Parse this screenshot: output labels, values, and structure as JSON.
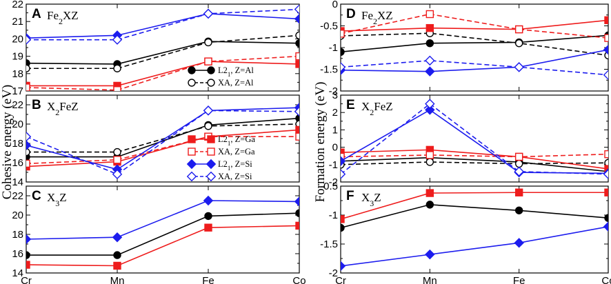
{
  "figure": {
    "ylabel_left": "Cohesive energy (eV)",
    "ylabel_right": "Formation energy (eV)"
  },
  "colors": {
    "black": "#000000",
    "red": "#ee1c1c",
    "blue": "#1c1cee"
  },
  "chart_data": [
    {
      "id": "A",
      "letter": "A",
      "title_base": "Fe",
      "title_sub": "2",
      "title_end": "XZ",
      "type": "line",
      "categories": [
        "Cr",
        "Mn",
        "Fe",
        "Co"
      ],
      "ylim": [
        17,
        22
      ],
      "yticks": [
        17,
        18,
        19,
        20,
        21,
        22
      ],
      "yticklabels": [
        "17",
        "18",
        "19",
        "20",
        "21",
        "22"
      ],
      "xticklabels": [],
      "series": [
        {
          "name": "L21, Z=Al",
          "color": "black",
          "style": "solid",
          "marker": "circle",
          "filled": true,
          "values": [
            18.6,
            18.55,
            19.85,
            19.75
          ]
        },
        {
          "name": "XA, Z=Al",
          "color": "black",
          "style": "dashed",
          "marker": "circle",
          "filled": false,
          "values": [
            18.3,
            18.3,
            19.8,
            20.2
          ]
        },
        {
          "name": "L21, Z=Ga",
          "color": "red",
          "style": "solid",
          "marker": "square",
          "filled": true,
          "values": [
            17.3,
            17.3,
            18.7,
            18.55
          ]
        },
        {
          "name": "XA, Z=Ga",
          "color": "red",
          "style": "dashed",
          "marker": "square",
          "filled": false,
          "values": [
            17.2,
            17.05,
            18.7,
            19.0
          ]
        },
        {
          "name": "L21, Z=Si",
          "color": "blue",
          "style": "solid",
          "marker": "diamond",
          "filled": true,
          "values": [
            20.05,
            20.2,
            21.45,
            21.15
          ]
        },
        {
          "name": "XA, Z=Si",
          "color": "blue",
          "style": "dashed",
          "marker": "diamond",
          "filled": false,
          "values": [
            19.95,
            19.95,
            21.45,
            21.7
          ]
        }
      ]
    },
    {
      "id": "B",
      "letter": "B",
      "title_base": "X",
      "title_sub": "2",
      "title_end": "FeZ",
      "type": "line",
      "categories": [
        "Cr",
        "Mn",
        "Fe",
        "Co"
      ],
      "ylim": [
        14,
        23
      ],
      "yticks": [
        14,
        16,
        18,
        20,
        22
      ],
      "yticklabels": [
        "14",
        "16",
        "18",
        "20",
        "22"
      ],
      "xticklabels": [],
      "series": [
        {
          "name": "L21, Z=Al",
          "color": "black",
          "style": "solid",
          "marker": "circle",
          "filled": true,
          "values": [
            16.6,
            16.6,
            19.9,
            20.6
          ]
        },
        {
          "name": "XA, Z=Al",
          "color": "black",
          "style": "dashed",
          "marker": "circle",
          "filled": false,
          "values": [
            17.1,
            17.1,
            19.8,
            20.0
          ]
        },
        {
          "name": "L21, Z=Ga",
          "color": "red",
          "style": "solid",
          "marker": "square",
          "filled": true,
          "values": [
            15.6,
            16.1,
            18.7,
            19.4
          ]
        },
        {
          "name": "XA, Z=Ga",
          "color": "red",
          "style": "dashed",
          "marker": "square",
          "filled": false,
          "values": [
            15.9,
            16.3,
            18.7,
            18.7
          ]
        },
        {
          "name": "L21, Z=Si",
          "color": "blue",
          "style": "solid",
          "marker": "diamond",
          "filled": true,
          "values": [
            17.8,
            15.3,
            21.4,
            21.7
          ]
        },
        {
          "name": "XA, Z=Si",
          "color": "blue",
          "style": "dashed",
          "marker": "diamond",
          "filled": false,
          "values": [
            18.7,
            14.8,
            21.4,
            21.3
          ]
        }
      ]
    },
    {
      "id": "C",
      "letter": "C",
      "title_base": "X",
      "title_sub": "3",
      "title_end": "Z",
      "type": "line",
      "categories": [
        "Cr",
        "Mn",
        "Fe",
        "Co"
      ],
      "ylim": [
        14,
        23
      ],
      "yticks": [
        14,
        16,
        18,
        20,
        22
      ],
      "yticklabels": [
        "14",
        "16",
        "18",
        "20",
        "22"
      ],
      "xticklabels": [
        "Cr",
        "Mn",
        "Fe",
        "Co"
      ],
      "series": [
        {
          "name": "Z=Al",
          "color": "black",
          "style": "solid",
          "marker": "circle",
          "filled": true,
          "values": [
            15.85,
            15.85,
            19.9,
            20.2
          ]
        },
        {
          "name": "Z=Ga",
          "color": "red",
          "style": "solid",
          "marker": "square",
          "filled": true,
          "values": [
            14.85,
            14.75,
            18.7,
            18.9
          ]
        },
        {
          "name": "Z=Si",
          "color": "blue",
          "style": "solid",
          "marker": "diamond",
          "filled": true,
          "values": [
            17.5,
            17.7,
            21.5,
            21.4
          ]
        }
      ]
    },
    {
      "id": "D",
      "letter": "D",
      "title_base": "Fe",
      "title_sub": "2",
      "title_end": "XZ",
      "type": "line",
      "categories": [
        "Cr",
        "Mn",
        "Fe",
        "Co"
      ],
      "ylim": [
        -2,
        0
      ],
      "yticks": [
        -2,
        -1.5,
        -1,
        -0.5,
        0
      ],
      "yticklabels": [
        "-2",
        "-1.5",
        "-1",
        "-0.5",
        "0"
      ],
      "xticklabels": [],
      "series": [
        {
          "name": "L21, Z=Al",
          "color": "black",
          "style": "solid",
          "marker": "circle",
          "filled": true,
          "values": [
            -1.1,
            -0.9,
            -0.88,
            -0.72
          ]
        },
        {
          "name": "XA, Z=Al",
          "color": "black",
          "style": "dashed",
          "marker": "circle",
          "filled": false,
          "values": [
            -0.73,
            -0.67,
            -0.9,
            -1.18
          ]
        },
        {
          "name": "L21, Z=Ga",
          "color": "red",
          "style": "solid",
          "marker": "square",
          "filled": true,
          "values": [
            -0.62,
            -0.55,
            -0.58,
            -0.37
          ]
        },
        {
          "name": "XA, Z=Ga",
          "color": "red",
          "style": "dashed",
          "marker": "square",
          "filled": false,
          "values": [
            -0.68,
            -0.23,
            -0.58,
            -0.78
          ]
        },
        {
          "name": "L21, Z=Si",
          "color": "blue",
          "style": "solid",
          "marker": "diamond",
          "filled": true,
          "values": [
            -1.52,
            -1.55,
            -1.45,
            -1.05
          ]
        },
        {
          "name": "XA, Z=Si",
          "color": "blue",
          "style": "dashed",
          "marker": "diamond",
          "filled": false,
          "values": [
            -1.45,
            -1.3,
            -1.45,
            -1.63
          ]
        }
      ]
    },
    {
      "id": "E",
      "letter": "E",
      "title_base": "X",
      "title_sub": "2",
      "title_end": "FeZ",
      "type": "line",
      "categories": [
        "Cr",
        "Mn",
        "Fe",
        "Co"
      ],
      "ylim": [
        -2,
        3
      ],
      "yticks": [
        -2,
        -1,
        0,
        1,
        2,
        3
      ],
      "yticklabels": [
        "-2",
        "-1",
        "0",
        "1",
        "2",
        "3"
      ],
      "xticklabels": [],
      "series": [
        {
          "name": "L21, Z=Al",
          "color": "black",
          "style": "solid",
          "marker": "circle",
          "filled": true,
          "values": [
            -0.8,
            -0.6,
            -0.85,
            -1.4
          ]
        },
        {
          "name": "XA, Z=Al",
          "color": "black",
          "style": "dashed",
          "marker": "circle",
          "filled": false,
          "values": [
            -1.0,
            -0.85,
            -0.95,
            -0.9
          ]
        },
        {
          "name": "L21, Z=Ga",
          "color": "red",
          "style": "solid",
          "marker": "square",
          "filled": true,
          "values": [
            -0.3,
            -0.15,
            -0.55,
            -1.25
          ]
        },
        {
          "name": "XA, Z=Ga",
          "color": "red",
          "style": "dashed",
          "marker": "square",
          "filled": false,
          "values": [
            -0.55,
            -0.45,
            -0.55,
            -0.4
          ]
        },
        {
          "name": "L21, Z=Si",
          "color": "blue",
          "style": "solid",
          "marker": "diamond",
          "filled": true,
          "values": [
            -0.8,
            2.15,
            -1.45,
            -1.5
          ]
        },
        {
          "name": "XA, Z=Si",
          "color": "blue",
          "style": "dashed",
          "marker": "diamond",
          "filled": false,
          "values": [
            -1.55,
            2.5,
            -1.4,
            -1.55
          ]
        }
      ]
    },
    {
      "id": "F",
      "letter": "F",
      "title_base": "X",
      "title_sub": "3",
      "title_end": "Z",
      "type": "line",
      "categories": [
        "Cr",
        "Mn",
        "Fe",
        "Co"
      ],
      "ylim": [
        -2,
        -0.5
      ],
      "yticks": [
        -2,
        -1.5,
        -1,
        -0.5
      ],
      "yticklabels": [
        "-2",
        "-1.5",
        "-1",
        "-0.5"
      ],
      "xticklabels": [
        "Cr",
        "Mn",
        "Fe",
        "Co"
      ],
      "series": [
        {
          "name": "Z=Al",
          "color": "black",
          "style": "solid",
          "marker": "circle",
          "filled": true,
          "values": [
            -1.22,
            -0.82,
            -0.92,
            -1.05
          ]
        },
        {
          "name": "Z=Ga",
          "color": "red",
          "style": "solid",
          "marker": "square",
          "filled": true,
          "values": [
            -1.07,
            -0.62,
            -0.61,
            -0.61
          ]
        },
        {
          "name": "Z=Si",
          "color": "blue",
          "style": "solid",
          "marker": "diamond",
          "filled": true,
          "values": [
            -1.88,
            -1.68,
            -1.48,
            -1.2
          ]
        }
      ]
    }
  ],
  "legend_a": {
    "items": [
      {
        "label_pre": "L2",
        "label_sub": "1",
        "label_post": ", Z=Al",
        "color": "black",
        "style": "solid",
        "marker": "circle",
        "filled": true
      },
      {
        "label_pre": "XA, Z=Al",
        "label_sub": "",
        "label_post": "",
        "color": "black",
        "style": "dashed",
        "marker": "circle",
        "filled": false
      }
    ]
  },
  "legend_b": {
    "items": [
      {
        "label_pre": "L2",
        "label_sub": "1",
        "label_post": ", Z=Ga",
        "color": "red",
        "style": "solid",
        "marker": "square",
        "filled": true
      },
      {
        "label_pre": "XA, Z=Ga",
        "label_sub": "",
        "label_post": "",
        "color": "red",
        "style": "dashed",
        "marker": "square",
        "filled": false
      },
      {
        "label_pre": "L2",
        "label_sub": "1",
        "label_post": ", Z=Si",
        "color": "blue",
        "style": "solid",
        "marker": "diamond",
        "filled": true
      },
      {
        "label_pre": "XA, Z=Si",
        "label_sub": "",
        "label_post": "",
        "color": "blue",
        "style": "dashed",
        "marker": "diamond",
        "filled": false
      }
    ]
  }
}
